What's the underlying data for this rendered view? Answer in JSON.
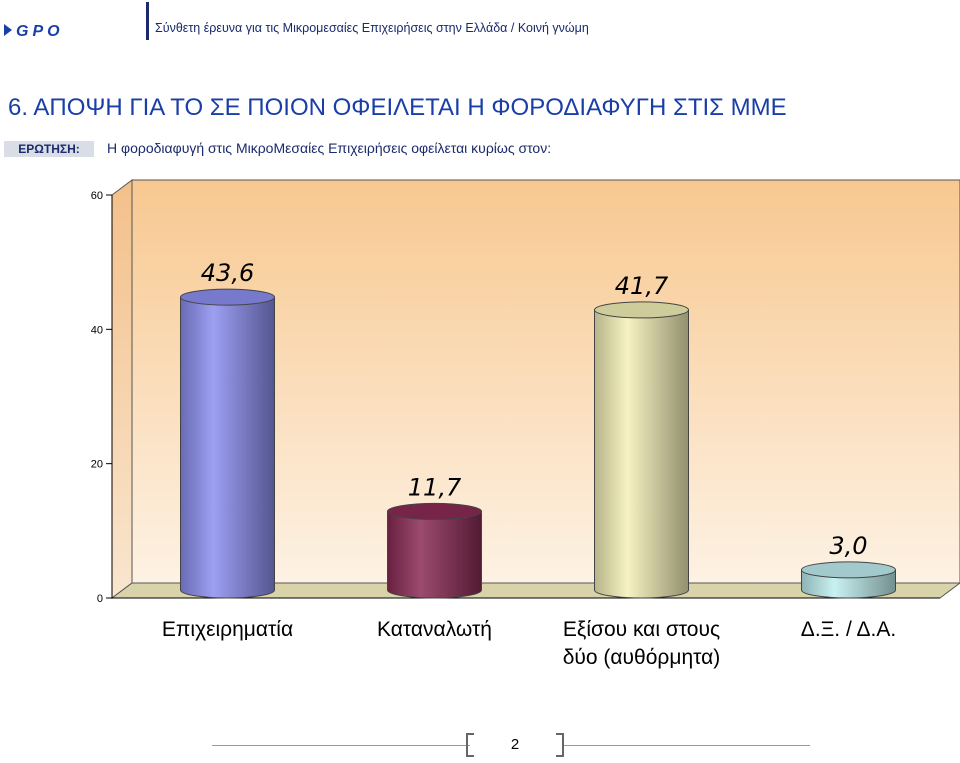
{
  "header": {
    "logo_text": "GPO",
    "subtitle": "Σύνθετη έρευνα για τις  Μικρομεσαίες Επιχειρήσεις στην Ελλάδα  /  Κοινή γνώμη"
  },
  "title": "6.   ΑΠΟΨΗ ΓΙΑ ΤΟ ΣΕ ΠΟΙΟΝ ΟΦΕΙΛΕΤΑΙ Η ΦΟΡΟΔΙΑΦΥΓΗ ΣΤΙΣ ΜΜΕ",
  "question": {
    "label": "ΕΡΩΤΗΣΗ:",
    "text": "Η φοροδιαφυγή στις ΜικροΜεσαίες Επιχειρήσεις οφείλεται κυρίως στον:"
  },
  "chart_data": {
    "type": "bar",
    "categories": [
      "Επιχειρηματία",
      "Καταναλωτή",
      "Εξίσου και στους δύο (αυθόρμητα)",
      "Δ.Ξ. / Δ.Α."
    ],
    "category_lines": [
      [
        "Επιχειρηματία"
      ],
      [
        "Καταναλωτή"
      ],
      [
        "Εξίσου και στους",
        "δύο (αυθόρμητα)"
      ],
      [
        "Δ.Ξ. / Δ.Α."
      ]
    ],
    "values": [
      43.6,
      11.7,
      41.7,
      3.0
    ],
    "value_labels": [
      "43,6",
      "11,7",
      "41,7",
      "3,0"
    ],
    "bar_colors": [
      "#8c8ef0",
      "#8b2b55",
      "#f4f0b8",
      "#bfeef0"
    ],
    "yticks": [
      "0",
      "20",
      "40",
      "60"
    ],
    "ylim": [
      0,
      60
    ],
    "grid": false,
    "style": "3d-cylinder"
  },
  "footer": {
    "page": "2"
  }
}
